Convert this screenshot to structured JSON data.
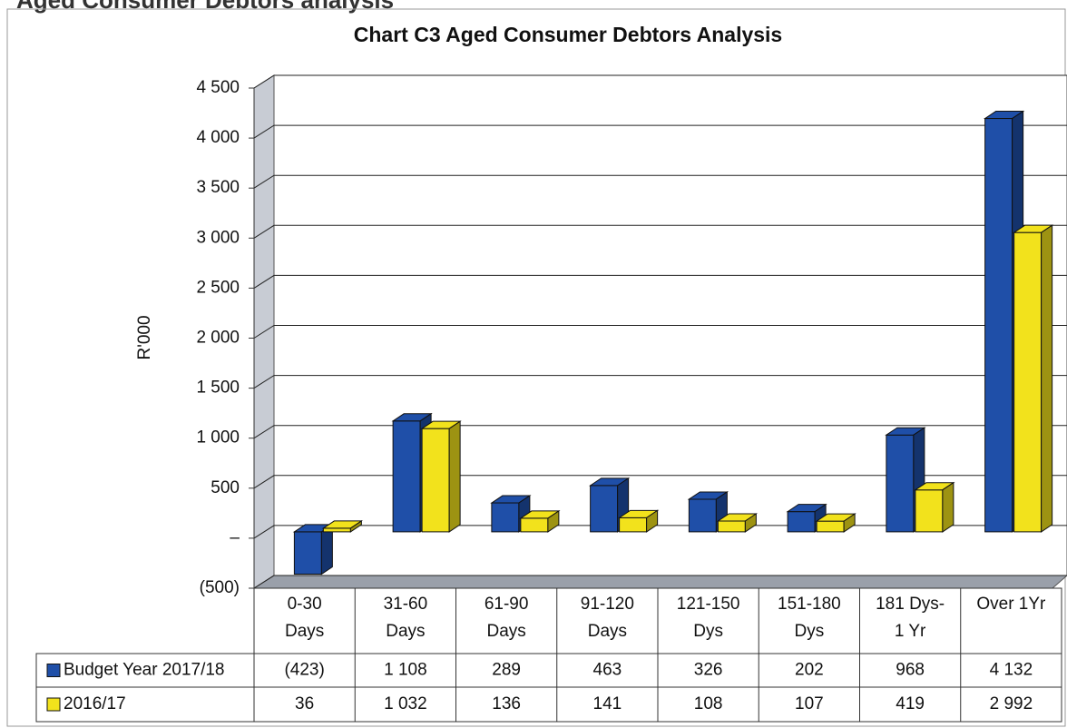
{
  "heading": "Aged Consumer Debtors analysis",
  "chart_data": {
    "type": "bar3d",
    "title": "Chart C3 Aged Consumer Debtors Analysis",
    "y_label": "R'000",
    "categories": [
      [
        "0-30",
        "Days"
      ],
      [
        "31-60",
        "Days"
      ],
      [
        "61-90",
        "Days"
      ],
      [
        "91-120",
        "Days"
      ],
      [
        "121-150",
        "Dys"
      ],
      [
        "151-180",
        "Dys"
      ],
      [
        "181 Dys-",
        "1 Yr"
      ],
      [
        "Over 1Yr"
      ]
    ],
    "series": [
      {
        "name": "Budget Year 2017/18",
        "color": "#1f4fa8",
        "values": [
          -423,
          1108,
          289,
          463,
          326,
          202,
          968,
          4132
        ],
        "value_labels": [
          "(423)",
          "1 108",
          "289",
          "463",
          "326",
          "202",
          "968",
          "4 132"
        ]
      },
      {
        "name": "2016/17",
        "color": "#f2e21c",
        "values": [
          36,
          1032,
          136,
          141,
          108,
          107,
          419,
          2992
        ],
        "value_labels": [
          "36",
          "1 032",
          "136",
          "141",
          "108",
          "107",
          "419",
          "2 992"
        ]
      }
    ],
    "ylim": [
      -500,
      4500
    ],
    "yticks": [
      {
        "value": -500,
        "label": "(500)"
      },
      {
        "value": 0,
        "label": "–"
      },
      500,
      {
        "value": 1000,
        "label": "1 000"
      },
      {
        "value": 1500,
        "label": "1 500"
      },
      {
        "value": 2000,
        "label": "2 000"
      },
      {
        "value": 2500,
        "label": "2 500"
      },
      {
        "value": 3000,
        "label": "3 000"
      },
      {
        "value": 3500,
        "label": "3 500"
      },
      {
        "value": 4000,
        "label": "4 000"
      },
      {
        "value": 4500,
        "label": "4 500"
      }
    ],
    "grid": true
  }
}
